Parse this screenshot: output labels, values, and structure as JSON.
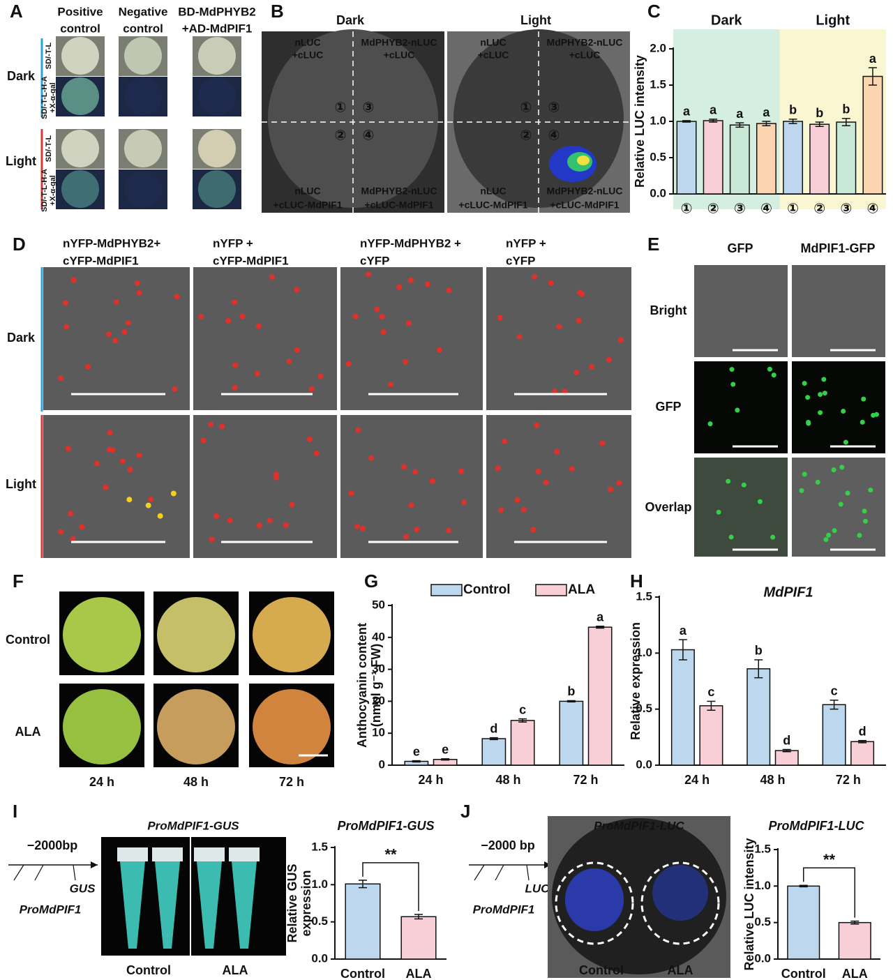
{
  "panel_letters": [
    "A",
    "B",
    "C",
    "D",
    "E",
    "F",
    "G",
    "H",
    "I",
    "J"
  ],
  "panel_a": {
    "columns": [
      [
        "Positive",
        "control"
      ],
      [
        "Negative",
        "control"
      ],
      [
        "BD-MdPHYB2",
        "+AD-MdPIF1"
      ]
    ],
    "rows": [
      "Dark",
      "Light"
    ],
    "media": [
      "SD/-T-L",
      "SD/-T-L-H-A",
      "+X-α-gal"
    ]
  },
  "panel_b": {
    "columns": [
      "Dark",
      "Light"
    ],
    "quadrants": [
      [
        "nLUC",
        "+cLUC"
      ],
      [
        "MdPHYB2-nLUC",
        "+cLUC"
      ],
      [
        "nLUC",
        "+cLUC-MdPIF1"
      ],
      [
        "MdPHYB2-nLUC",
        "+cLUC-MdPIF1"
      ]
    ],
    "spots": [
      "①",
      "②",
      "③",
      "④"
    ]
  },
  "panel_d": {
    "columns": [
      [
        "nYFP-MdPHYB2+",
        "cYFP-MdPIF1"
      ],
      [
        "nYFP +",
        "cYFP-MdPIF1"
      ],
      [
        "nYFP-MdPHYB2 +",
        "cYFP"
      ],
      [
        "nYFP +",
        "cYFP"
      ]
    ],
    "rows": [
      "Dark",
      "Light"
    ]
  },
  "panel_e": {
    "columns": [
      "GFP",
      "MdPIF1-GFP"
    ],
    "rows": [
      "Bright",
      "GFP",
      "Overlap"
    ]
  },
  "panel_f": {
    "rows": [
      "Control",
      "ALA"
    ],
    "columns": [
      "24 h",
      "48 h",
      "72 h"
    ]
  },
  "panel_i": {
    "promoter_length": "−2000bp",
    "reporter": "GUS",
    "promoter": "ProMdPIF1",
    "image_title": "ProMdPIF1-GUS",
    "image_labels": [
      "Control",
      "ALA"
    ]
  },
  "panel_j": {
    "promoter_length": "−2000 bp",
    "reporter": "LUC",
    "promoter": "ProMdPIF1",
    "image_title": "ProMdPIF1-LUC",
    "image_labels": [
      "Control",
      "ALA"
    ]
  },
  "chart_data": [
    {
      "type": "bar",
      "ylabel": [
        "Relative LUC intensity"
      ],
      "groups": [
        "Dark",
        "Light"
      ],
      "group_colors": [
        "#d5eee2",
        "#fbf6d2"
      ],
      "categories": [
        "①",
        "②",
        "③",
        "④",
        "①",
        "②",
        "③",
        "④"
      ],
      "values": [
        1.0,
        1.01,
        0.95,
        0.97,
        1.0,
        0.96,
        0.99,
        1.62
      ],
      "errors": [
        0.01,
        0.02,
        0.03,
        0.03,
        0.03,
        0.03,
        0.05,
        0.12
      ],
      "letters": [
        "a",
        "a",
        "a",
        "a",
        "b",
        "b",
        "b",
        "a"
      ],
      "colors": [
        "#bdd7ee",
        "#f8cfd6",
        "#c9e8d6",
        "#fbd5b0",
        "#bdd7ee",
        "#f8cfd6",
        "#c9e8d6",
        "#fbd5b0"
      ],
      "ylim": [
        0,
        2
      ],
      "yticks": [
        {
          "value": 0,
          "label": "0.0"
        },
        0.5,
        {
          "value": 1,
          "label": "1.0"
        },
        1.5,
        {
          "value": 2,
          "label": "2.0"
        }
      ]
    },
    {
      "type": "grouped-bar",
      "ylabel": [
        "Anthocyanin content",
        "(nmol g⁻¹ FW)"
      ],
      "legend": "top",
      "categories": [
        "24 h",
        "48 h",
        "72 h"
      ],
      "series": [
        {
          "name": "Control",
          "color": "#bdd7ee",
          "values": [
            1.2,
            8.3,
            20
          ],
          "errors": [
            0.2,
            0.3,
            0.2
          ],
          "letters": [
            "e",
            "d",
            "b"
          ]
        },
        {
          "name": "ALA",
          "color": "#f8cfd6",
          "values": [
            1.8,
            14,
            43.2
          ],
          "errors": [
            0.2,
            0.5,
            0.3
          ],
          "letters": [
            "e",
            "c",
            "a"
          ]
        }
      ],
      "ylim": [
        0,
        50
      ],
      "yticks": [
        0,
        10,
        20,
        30,
        40,
        50
      ]
    },
    {
      "type": "grouped-bar",
      "title": "MdPIF1",
      "ylabel": [
        "Relative expression"
      ],
      "categories": [
        "24 h",
        "48 h",
        "72 h"
      ],
      "series": [
        {
          "color": "#bdd7ee",
          "values": [
            1.03,
            0.86,
            0.54
          ],
          "errors": [
            0.09,
            0.08,
            0.04
          ],
          "letters": [
            "a",
            "b",
            "c"
          ]
        },
        {
          "color": "#f8cfd6",
          "values": [
            0.53,
            0.13,
            0.21
          ],
          "errors": [
            0.04,
            0.01,
            0.01
          ],
          "letters": [
            "c",
            "d",
            "d"
          ]
        }
      ],
      "ylim": [
        0,
        1.5
      ],
      "yticks": [
        {
          "value": 0,
          "label": "0.0"
        },
        0.5,
        {
          "value": 1,
          "label": "1.0"
        },
        1.5
      ]
    },
    {
      "type": "bar",
      "title": "ProMdPIF1-GUS",
      "ylabel": [
        "Relative GUS",
        "expression"
      ],
      "categories": [
        "Control",
        "ALA"
      ],
      "values": [
        1.01,
        0.57
      ],
      "errors": [
        0.05,
        0.03
      ],
      "colors": [
        "#bdd7ee",
        "#f8cfd6"
      ],
      "significance": "**",
      "ylim": [
        0,
        1.5
      ],
      "yticks": [
        {
          "value": 0,
          "label": "0.0"
        },
        0.5,
        {
          "value": 1,
          "label": "1.0"
        },
        1.5
      ]
    },
    {
      "type": "bar",
      "title": "ProMdPIF1-LUC",
      "ylabel": [
        "Relative LUC intensity"
      ],
      "categories": [
        "Control",
        "ALA"
      ],
      "values": [
        1.0,
        0.5
      ],
      "errors": [
        0.01,
        0.02
      ],
      "colors": [
        "#bdd7ee",
        "#f8cfd6"
      ],
      "significance": "**",
      "ylim": [
        0,
        1.5
      ],
      "yticks": [
        {
          "value": 0,
          "label": "0.0"
        },
        0.5,
        {
          "value": 1,
          "label": "1.0"
        },
        1.5
      ]
    }
  ]
}
